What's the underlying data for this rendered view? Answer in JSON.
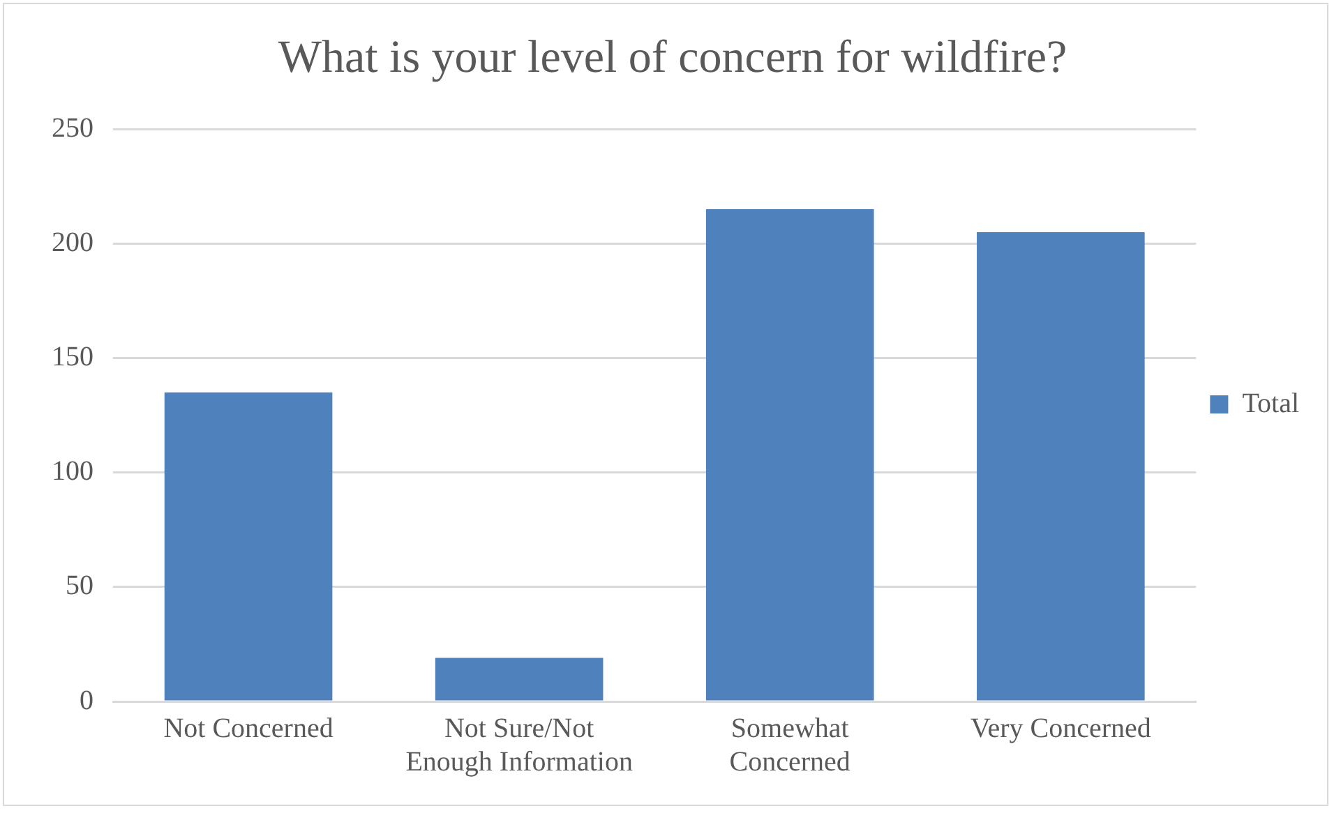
{
  "chart_data": {
    "type": "bar",
    "title": "What is your level of concern for wildfire?",
    "categories": [
      "Not Concerned",
      "Not Sure/Not Enough Information",
      "Somewhat Concerned",
      "Very Concerned"
    ],
    "series": [
      {
        "name": "Total",
        "color": "#4f81bd",
        "values": [
          135,
          19,
          215,
          205
        ]
      }
    ],
    "ylim": [
      0,
      250
    ],
    "yticks": [
      0,
      50,
      100,
      150,
      200,
      250
    ],
    "grid": "y",
    "legend": "right"
  }
}
